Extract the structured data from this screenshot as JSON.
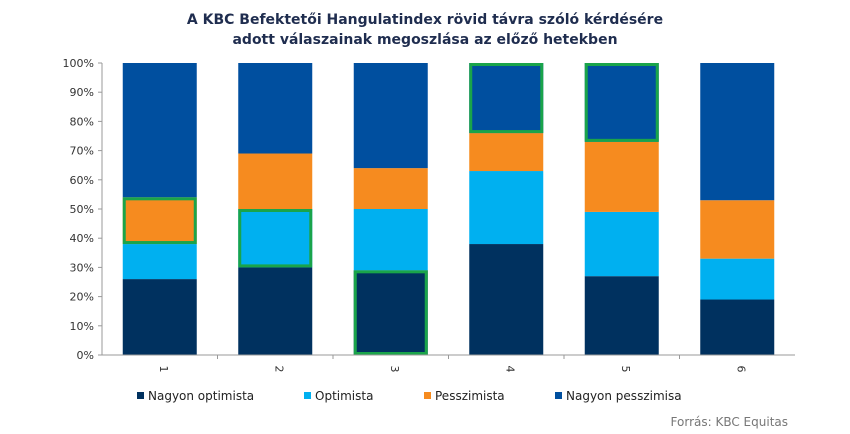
{
  "chart_data": {
    "type": "bar",
    "stacked": true,
    "title_line1": "A KBC Befektetői Hangulatindex  rövid távra szóló kérdésére",
    "title_line2": "adott válaszainak megoszlása az előző hetekben",
    "categories": [
      "1",
      "2",
      "3",
      "4",
      "5",
      "6"
    ],
    "series": [
      {
        "name": "Nagyon optimista",
        "color": "#00315f",
        "values": [
          26,
          30,
          29,
          38,
          27,
          19
        ]
      },
      {
        "name": "Optimista",
        "color": "#00b0f0",
        "values": [
          12,
          20,
          21,
          25,
          22,
          14
        ]
      },
      {
        "name": "Pesszimista",
        "color": "#f68b1f",
        "values": [
          16,
          19,
          14,
          13,
          24,
          20
        ]
      },
      {
        "name": "Nagyon pesszimisa",
        "color": "#004f9f",
        "values": [
          46,
          31,
          36,
          24,
          27,
          47
        ]
      }
    ],
    "highlights": [
      {
        "category": "1",
        "series": "Pesszimista"
      },
      {
        "category": "2",
        "series": "Optimista"
      },
      {
        "category": "3",
        "series": "Nagyon optimista"
      },
      {
        "category": "4",
        "series": "Nagyon pesszimisa"
      },
      {
        "category": "5",
        "series": "Nagyon pesszimisa"
      }
    ],
    "highlight_color": "#1aa44a",
    "yticks": [
      "0%",
      "10%",
      "20%",
      "30%",
      "40%",
      "50%",
      "60%",
      "70%",
      "80%",
      "90%",
      "100%"
    ],
    "ylim": [
      0,
      100
    ],
    "legend_position": "bottom",
    "source": "Forrás: KBC Equitas"
  }
}
